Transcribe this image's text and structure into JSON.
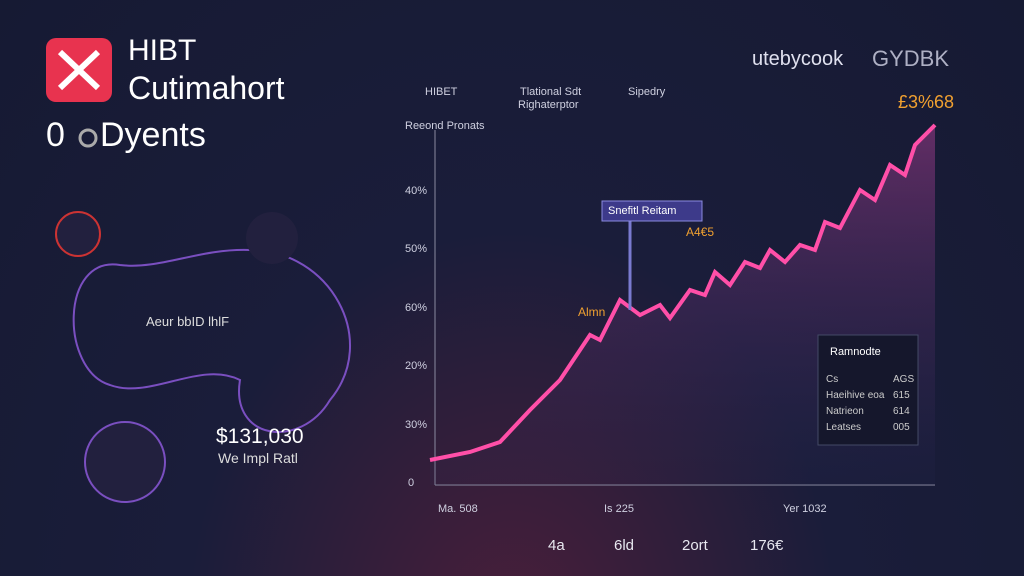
{
  "header": {
    "brand_line1": "HIBT",
    "brand_line2": "Cutimahort",
    "sub_prefix": "0",
    "sub_word": "Dyents"
  },
  "top_bar": {
    "items": [
      {
        "label": "HIBET"
      },
      {
        "label": "Tlational Sdt",
        "sublabel": "Righaterptor"
      },
      {
        "label": "Sipedry"
      }
    ],
    "logo1": "utebycook",
    "logo2": "GYDBK",
    "price": "£3%68"
  },
  "chart_panel": {
    "title": "Reeond Pronats",
    "y_labels": [
      "40%",
      "50%",
      "60%",
      "20%",
      "30%",
      "0"
    ],
    "annotations": {
      "callout": "Snefitl Reitam",
      "tag1": "A4€5",
      "tag2": "Almn"
    },
    "x_labels": [
      "Ma. 508",
      "Is 225",
      "Yer 1032"
    ],
    "stats": [
      "4a",
      "6ld",
      "2ort",
      "176€"
    ]
  },
  "left_panel": {
    "caption": "Aeur bbID lhlF",
    "amount": "$131,030",
    "note": "We Impl Ratl"
  },
  "legend_panel": {
    "title": "Ramnodte",
    "rows": [
      [
        "Cs",
        "AGS"
      ],
      [
        "Haeihive eoa",
        "615"
      ],
      [
        "Natrieon",
        "614"
      ],
      [
        "Leatses",
        "005"
      ]
    ]
  }
}
